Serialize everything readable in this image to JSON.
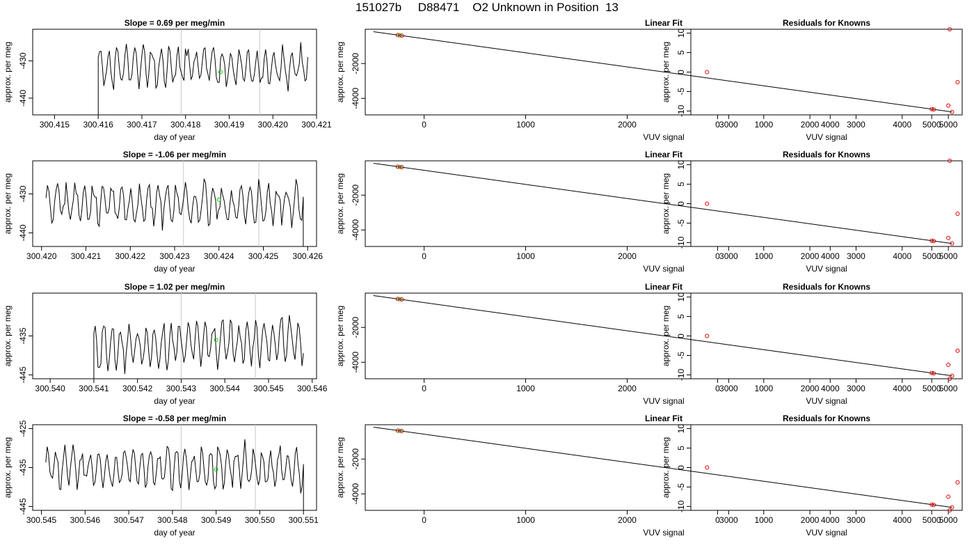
{
  "page_title": "151027b     D88471    O2 Unknown in Position  13",
  "chart_data": [
    {
      "type": "line",
      "title": "Slope =  0.69  per meg/min",
      "xlabel": "day of year",
      "ylabel": "approx. per meg",
      "xlim": [
        300.4145,
        300.421
      ],
      "ylim": [
        -444.5,
        -421.5
      ],
      "xticks": [
        300.415,
        300.416,
        300.417,
        300.418,
        300.419,
        300.42,
        300.421
      ],
      "xtick_labels": [
        "300.415",
        "300.416",
        "300.417",
        "300.418",
        "300.419",
        "300.420",
        "300.421"
      ],
      "yticks": [
        -440,
        -430
      ],
      "ytick_labels": [
        "-440",
        "-430"
      ],
      "vlines": [
        300.4179,
        300.4197
      ],
      "marker": {
        "x": 300.4188,
        "y": -433,
        "color": "#00cc00"
      },
      "series": [
        {
          "x_start": 300.416,
          "x_end": 300.4208,
          "n": 150,
          "center": -431.5,
          "amp": 5.5,
          "period": 6.2,
          "seed": 11,
          "start_drop": -445
        }
      ]
    },
    {
      "type": "scatter_fit",
      "title": "Linear Fit",
      "xlabel": "VUV signal",
      "ylabel": "approx. per meg",
      "xlim": [
        -580,
        5300
      ],
      "ylim": [
        -4950,
        -30
      ],
      "xticks": [
        0,
        1000,
        2000,
        3000,
        4000,
        5000
      ],
      "xtick_labels": [
        "0",
        "1000",
        "2000",
        "3000",
        "4000",
        "5000"
      ],
      "yticks": [
        -4000,
        -2000
      ],
      "ytick_labels": [
        "-4000",
        "-2000"
      ],
      "fit_line": {
        "x": [
          -500,
          5200
        ],
        "y": [
          -170,
          -4780
        ]
      },
      "points": [
        {
          "x": -240,
          "y": -380,
          "color": "#00cc00"
        },
        {
          "x": -260,
          "y": -365,
          "color": "#dd0000"
        },
        {
          "x": -220,
          "y": -395,
          "color": "#dd0000"
        },
        {
          "x": 5000,
          "y": -4620,
          "color": "#dd0000"
        },
        {
          "x": 5020,
          "y": -4640,
          "color": "#dd0000"
        },
        {
          "x": 5200,
          "y": -4780,
          "color": "#dd0000"
        }
      ]
    },
    {
      "type": "scatter",
      "title": "Residuals for Knowns",
      "xlabel": "VUV signal",
      "ylabel": "approx. per meg",
      "xlim": [
        -580,
        5300
      ],
      "ylim": [
        -11,
        11
      ],
      "xticks": [
        0,
        1000,
        2000,
        3000,
        4000,
        5000
      ],
      "xtick_labels": [
        "0",
        "1000",
        "2000",
        "3000",
        "4000",
        "5000"
      ],
      "yticks": [
        -10,
        -5,
        0,
        5,
        10
      ],
      "ytick_labels": [
        "-10",
        "-5",
        "0",
        "5",
        "10"
      ],
      "points": [
        {
          "x": -230,
          "y": 0,
          "color": "#dd0000"
        },
        {
          "x": 5000,
          "y": -8.6,
          "color": "#dd0000"
        },
        {
          "x": 5200,
          "y": -2.6,
          "color": "#dd0000"
        },
        {
          "x": 5030,
          "y": 11,
          "color": "#dd0000"
        }
      ]
    },
    {
      "type": "line",
      "title": "Slope =  -1.06  per meg/min",
      "xlabel": "day of year",
      "ylabel": "approx. per meg",
      "xlim": [
        300.4198,
        300.4262
      ],
      "ylim": [
        -443.5,
        -421.5
      ],
      "xticks": [
        300.42,
        300.421,
        300.422,
        300.423,
        300.424,
        300.425,
        300.426
      ],
      "xtick_labels": [
        "300.420",
        "300.421",
        "300.422",
        "300.423",
        "300.424",
        "300.425",
        "300.426"
      ],
      "yticks": [
        -440,
        -430
      ],
      "ytick_labels": [
        "-440",
        "-430"
      ],
      "vlines": [
        300.4232,
        300.4249
      ],
      "marker": {
        "x": 300.424,
        "y": -431.5,
        "color": "#00cc00"
      },
      "series": [
        {
          "x_start": 300.4201,
          "x_end": 300.4259,
          "n": 180,
          "center": -432.5,
          "amp": 5.2,
          "period": 6.4,
          "seed": 23,
          "end_drop": -445
        }
      ]
    },
    {
      "type": "scatter_fit",
      "title": "Linear Fit",
      "xlabel": "VUV signal",
      "ylabel": "approx. per meg",
      "xlim": [
        -580,
        5300
      ],
      "ylim": [
        -4950,
        -30
      ],
      "xticks": [
        0,
        1000,
        2000,
        3000,
        4000,
        5000
      ],
      "xtick_labels": [
        "0",
        "1000",
        "2000",
        "3000",
        "4000",
        "5000"
      ],
      "yticks": [
        -4000,
        -2000
      ],
      "ytick_labels": [
        "-4000",
        "-2000"
      ],
      "fit_line": {
        "x": [
          -500,
          5200
        ],
        "y": [
          -170,
          -4780
        ]
      },
      "points": [
        {
          "x": -240,
          "y": -380,
          "color": "#00cc00"
        },
        {
          "x": -260,
          "y": -365,
          "color": "#dd0000"
        },
        {
          "x": -220,
          "y": -395,
          "color": "#dd0000"
        },
        {
          "x": 5000,
          "y": -4620,
          "color": "#dd0000"
        },
        {
          "x": 5020,
          "y": -4640,
          "color": "#dd0000"
        },
        {
          "x": 5200,
          "y": -4780,
          "color": "#dd0000"
        }
      ]
    },
    {
      "type": "scatter",
      "title": "Residuals for Knowns",
      "xlabel": "VUV signal",
      "ylabel": "approx. per meg",
      "xlim": [
        -580,
        5300
      ],
      "ylim": [
        -11,
        11
      ],
      "xticks": [
        0,
        1000,
        2000,
        3000,
        4000,
        5000
      ],
      "xtick_labels": [
        "0",
        "1000",
        "2000",
        "3000",
        "4000",
        "5000"
      ],
      "yticks": [
        -10,
        -5,
        0,
        5,
        10
      ],
      "ytick_labels": [
        "-10",
        "-5",
        "0",
        "5",
        "10"
      ],
      "points": [
        {
          "x": -230,
          "y": 0,
          "color": "#dd0000"
        },
        {
          "x": 5000,
          "y": -8.8,
          "color": "#dd0000"
        },
        {
          "x": 5200,
          "y": -2.6,
          "color": "#dd0000"
        },
        {
          "x": 5030,
          "y": 11,
          "color": "#dd0000"
        }
      ]
    },
    {
      "type": "line",
      "title": "Slope =  1.02  per meg/min",
      "xlabel": "day of year",
      "ylabel": "approx. per meg",
      "xlim": [
        300.5396,
        300.5461
      ],
      "ylim": [
        -446,
        -424
      ],
      "xticks": [
        300.54,
        300.541,
        300.542,
        300.543,
        300.544,
        300.545,
        300.546
      ],
      "xtick_labels": [
        "300.540",
        "300.541",
        "300.542",
        "300.543",
        "300.544",
        "300.545",
        "300.546"
      ],
      "yticks": [
        -445,
        -435
      ],
      "ytick_labels": [
        "-445",
        "-435"
      ],
      "vlines": [
        300.543,
        300.5447
      ],
      "marker": {
        "x": 300.5438,
        "y": -436,
        "color": "#00cc00"
      },
      "series": [
        {
          "x_start": 300.541,
          "x_end": 300.5458,
          "n": 150,
          "center": -437,
          "amp": 6,
          "period": 6.0,
          "seed": 37,
          "start_drop": -447,
          "trend": 3
        }
      ]
    },
    {
      "type": "scatter_fit",
      "title": "Linear Fit",
      "xlabel": "VUV signal",
      "ylabel": "approx. per meg",
      "xlim": [
        -580,
        5300
      ],
      "ylim": [
        -4950,
        -30
      ],
      "xticks": [
        0,
        1000,
        2000,
        3000,
        4000,
        5000
      ],
      "xtick_labels": [
        "0",
        "1000",
        "2000",
        "3000",
        "4000",
        "5000"
      ],
      "yticks": [
        -4000,
        -2000
      ],
      "ytick_labels": [
        "-4000",
        "-2000"
      ],
      "fit_line": {
        "x": [
          -500,
          5200
        ],
        "y": [
          -170,
          -4780
        ]
      },
      "points": [
        {
          "x": -240,
          "y": -380,
          "color": "#00cc00"
        },
        {
          "x": -260,
          "y": -365,
          "color": "#dd0000"
        },
        {
          "x": -220,
          "y": -395,
          "color": "#dd0000"
        },
        {
          "x": 5000,
          "y": -4620,
          "color": "#dd0000"
        },
        {
          "x": 5020,
          "y": -4640,
          "color": "#dd0000"
        },
        {
          "x": 5200,
          "y": -4780,
          "color": "#dd0000"
        }
      ]
    },
    {
      "type": "scatter",
      "title": "Residuals for Knowns",
      "xlabel": "VUV signal",
      "ylabel": "approx. per meg",
      "xlim": [
        -580,
        5300
      ],
      "ylim": [
        -11,
        11
      ],
      "xticks": [
        0,
        1000,
        2000,
        3000,
        4000,
        5000
      ],
      "xtick_labels": [
        "0",
        "1000",
        "2000",
        "3000",
        "4000",
        "5000"
      ],
      "yticks": [
        -10,
        -5,
        0,
        5,
        10
      ],
      "ytick_labels": [
        "-10",
        "-5",
        "0",
        "5",
        "10"
      ],
      "points": [
        {
          "x": -230,
          "y": 0,
          "color": "#dd0000"
        },
        {
          "x": 5000,
          "y": -7.4,
          "color": "#dd0000"
        },
        {
          "x": 5200,
          "y": -3.8,
          "color": "#dd0000"
        },
        {
          "x": 5030,
          "y": -11,
          "color": "#dd0000"
        }
      ]
    },
    {
      "type": "line",
      "title": "Slope =  -0.58  per meg/min",
      "xlabel": "day of year",
      "ylabel": "approx. per meg",
      "xlim": [
        300.5448,
        300.5513
      ],
      "ylim": [
        -446,
        -424
      ],
      "xticks": [
        300.545,
        300.546,
        300.547,
        300.548,
        300.549,
        300.55,
        300.551
      ],
      "xtick_labels": [
        "300.545",
        "300.546",
        "300.547",
        "300.548",
        "300.549",
        "300.550",
        "300.551"
      ],
      "yticks": [
        -445,
        -435,
        -425
      ],
      "ytick_labels": [
        "-445",
        "-435",
        "-425"
      ],
      "vlines": [
        300.5482,
        300.5499
      ],
      "marker": {
        "x": 300.549,
        "y": -435.5,
        "color": "#00cc00"
      },
      "series": [
        {
          "x_start": 300.5451,
          "x_end": 300.551,
          "n": 190,
          "center": -435,
          "amp": 5.5,
          "period": 6.3,
          "seed": 53,
          "end_drop": -447
        }
      ]
    },
    {
      "type": "scatter_fit",
      "title": "Linear Fit",
      "xlabel": "VUV signal",
      "ylabel": "approx. per meg",
      "xlim": [
        -580,
        5300
      ],
      "ylim": [
        -4950,
        -30
      ],
      "xticks": [
        0,
        1000,
        2000,
        3000,
        4000,
        5000
      ],
      "xtick_labels": [
        "0",
        "1000",
        "2000",
        "3000",
        "4000",
        "5000"
      ],
      "yticks": [
        -4000,
        -2000
      ],
      "ytick_labels": [
        "-4000",
        "-2000"
      ],
      "fit_line": {
        "x": [
          -500,
          5200
        ],
        "y": [
          -170,
          -4780
        ]
      },
      "points": [
        {
          "x": -240,
          "y": -380,
          "color": "#00cc00"
        },
        {
          "x": -260,
          "y": -365,
          "color": "#dd0000"
        },
        {
          "x": -220,
          "y": -395,
          "color": "#dd0000"
        },
        {
          "x": 5000,
          "y": -4620,
          "color": "#dd0000"
        },
        {
          "x": 5020,
          "y": -4640,
          "color": "#dd0000"
        },
        {
          "x": 5200,
          "y": -4780,
          "color": "#dd0000"
        }
      ]
    },
    {
      "type": "scatter",
      "title": "Residuals for Knowns",
      "xlabel": "VUV signal",
      "ylabel": "approx. per meg",
      "xlim": [
        -580,
        5300
      ],
      "ylim": [
        -11,
        11
      ],
      "xticks": [
        0,
        1000,
        2000,
        3000,
        4000,
        5000
      ],
      "xtick_labels": [
        "0",
        "1000",
        "2000",
        "3000",
        "4000",
        "5000"
      ],
      "yticks": [
        -10,
        -5,
        0,
        5,
        10
      ],
      "ytick_labels": [
        "-10",
        "-5",
        "0",
        "5",
        "10"
      ],
      "points": [
        {
          "x": -230,
          "y": 0,
          "color": "#dd0000"
        },
        {
          "x": 5000,
          "y": -7.5,
          "color": "#dd0000"
        },
        {
          "x": 5200,
          "y": -3.8,
          "color": "#dd0000"
        },
        {
          "x": 5030,
          "y": -11,
          "color": "#dd0000"
        }
      ]
    }
  ]
}
